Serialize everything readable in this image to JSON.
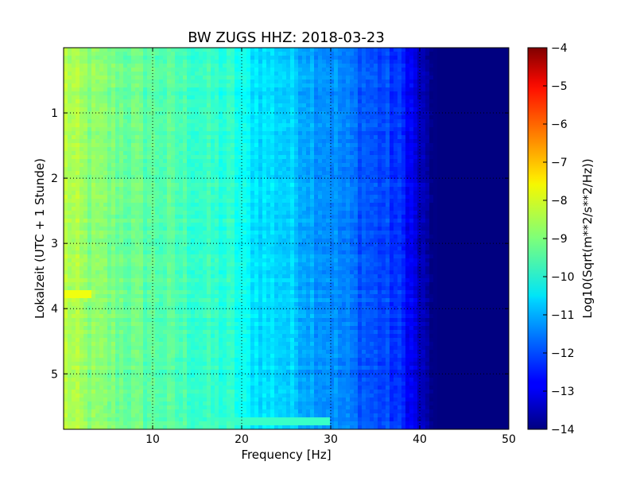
{
  "chart_data": {
    "type": "heatmap",
    "title": "BW ZUGS HHZ: 2018-03-23",
    "xlabel": "Frequency [Hz]",
    "ylabel": "Lokalzeit (UTC + 1 Stunde)",
    "xlim": [
      0,
      50
    ],
    "ylim": [
      5.85,
      0
    ],
    "x_ticks": [
      {
        "value": 10,
        "label": "10"
      },
      {
        "value": 20,
        "label": "20"
      },
      {
        "value": 30,
        "label": "30"
      },
      {
        "value": 40,
        "label": "40"
      },
      {
        "value": 50,
        "label": "50"
      }
    ],
    "y_ticks": [
      {
        "value": 1,
        "label": "1"
      },
      {
        "value": 2,
        "label": "2"
      },
      {
        "value": 3,
        "label": "3"
      },
      {
        "value": 4,
        "label": "4"
      },
      {
        "value": 5,
        "label": "5"
      }
    ],
    "grid": true,
    "colormap": "jet",
    "colorbar": {
      "label": "Log10(Sqrt(m**2/s**2/Hz))",
      "range": [
        -14,
        -4
      ],
      "ticks": [
        {
          "value": -4,
          "label": "−4"
        },
        {
          "value": -5,
          "label": "−5"
        },
        {
          "value": -6,
          "label": "−6"
        },
        {
          "value": -7,
          "label": "−7"
        },
        {
          "value": -8,
          "label": "−8"
        },
        {
          "value": -9,
          "label": "−9"
        },
        {
          "value": -10,
          "label": "−10"
        },
        {
          "value": -11,
          "label": "−11"
        },
        {
          "value": -12,
          "label": "−12"
        },
        {
          "value": -13,
          "label": "−13"
        },
        {
          "value": -14,
          "label": "−14"
        }
      ]
    },
    "spectrum_profile": {
      "frequency_hz": [
        0,
        1,
        3,
        6,
        9,
        11,
        14,
        17,
        19,
        20.5,
        22,
        24,
        26,
        28,
        30,
        32,
        34,
        36,
        38,
        39,
        40,
        41,
        42,
        50
      ],
      "level": [
        -8.4,
        -8.6,
        -8.9,
        -9.1,
        -9.3,
        -9.4,
        -9.6,
        -9.8,
        -9.9,
        -10.3,
        -10.5,
        -10.6,
        -10.8,
        -11.1,
        -11.3,
        -11.6,
        -11.9,
        -12.1,
        -12.4,
        -12.8,
        -13.4,
        -13.8,
        -14,
        -14
      ]
    },
    "features": [
      {
        "type": "band",
        "time": 3.75,
        "f_from": 0,
        "f_to": 3,
        "level": -7.9
      },
      {
        "type": "band",
        "time": 5.72,
        "f_from": 16,
        "f_to": 30,
        "level": -9.7
      }
    ]
  }
}
